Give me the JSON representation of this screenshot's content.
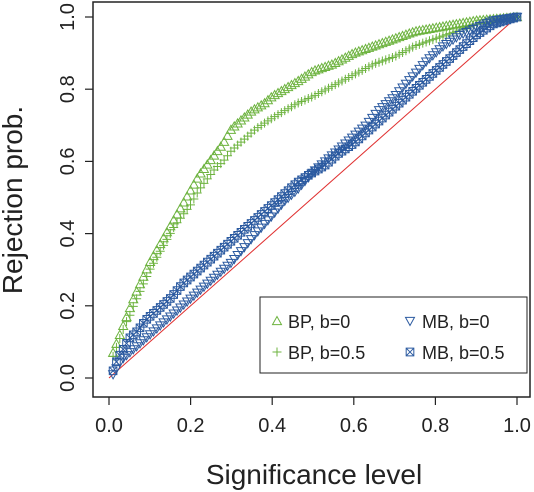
{
  "chart_data": {
    "type": "scatter",
    "xlabel": "Significance level",
    "ylabel": "Rejection prob.",
    "xlim": [
      0,
      1
    ],
    "ylim": [
      0,
      1
    ],
    "x_ticks": [
      "0.0",
      "0.2",
      "0.4",
      "0.6",
      "0.8",
      "1.0"
    ],
    "y_ticks": [
      "0.0",
      "0.2",
      "0.4",
      "0.6",
      "0.8",
      "1.0"
    ],
    "grid": false,
    "legend_position": "bottom-right",
    "reference_line": {
      "from": [
        0,
        0
      ],
      "to": [
        1,
        1
      ],
      "color": "#e03030"
    },
    "series": [
      {
        "name": "BP, b=0",
        "marker": "triangle-up",
        "color": "#6db33f",
        "points": [
          [
            0.01,
            0.07
          ],
          [
            0.02,
            0.1
          ],
          [
            0.03,
            0.13
          ],
          [
            0.04,
            0.16
          ],
          [
            0.05,
            0.19
          ],
          [
            0.06,
            0.22
          ],
          [
            0.08,
            0.27
          ],
          [
            0.1,
            0.32
          ],
          [
            0.12,
            0.36
          ],
          [
            0.14,
            0.4
          ],
          [
            0.16,
            0.44
          ],
          [
            0.18,
            0.48
          ],
          [
            0.2,
            0.52
          ],
          [
            0.22,
            0.56
          ],
          [
            0.24,
            0.59
          ],
          [
            0.26,
            0.62
          ],
          [
            0.28,
            0.65
          ],
          [
            0.3,
            0.69
          ],
          [
            0.32,
            0.71
          ],
          [
            0.35,
            0.74
          ],
          [
            0.38,
            0.76
          ],
          [
            0.4,
            0.78
          ],
          [
            0.43,
            0.8
          ],
          [
            0.46,
            0.82
          ],
          [
            0.5,
            0.85
          ],
          [
            0.55,
            0.87
          ],
          [
            0.6,
            0.9
          ],
          [
            0.65,
            0.92
          ],
          [
            0.7,
            0.94
          ],
          [
            0.75,
            0.96
          ],
          [
            0.8,
            0.97
          ],
          [
            0.85,
            0.98
          ],
          [
            0.9,
            0.99
          ],
          [
            0.95,
            0.995
          ],
          [
            1.0,
            1.0
          ]
        ]
      },
      {
        "name": "BP, b=0.5",
        "marker": "plus",
        "color": "#6db33f",
        "points": [
          [
            0.01,
            0.06
          ],
          [
            0.02,
            0.09
          ],
          [
            0.03,
            0.12
          ],
          [
            0.04,
            0.15
          ],
          [
            0.05,
            0.17
          ],
          [
            0.06,
            0.2
          ],
          [
            0.08,
            0.25
          ],
          [
            0.1,
            0.3
          ],
          [
            0.12,
            0.34
          ],
          [
            0.14,
            0.38
          ],
          [
            0.16,
            0.42
          ],
          [
            0.18,
            0.45
          ],
          [
            0.2,
            0.48
          ],
          [
            0.22,
            0.52
          ],
          [
            0.24,
            0.55
          ],
          [
            0.26,
            0.58
          ],
          [
            0.28,
            0.6
          ],
          [
            0.3,
            0.63
          ],
          [
            0.33,
            0.66
          ],
          [
            0.36,
            0.69
          ],
          [
            0.4,
            0.72
          ],
          [
            0.43,
            0.74
          ],
          [
            0.46,
            0.76
          ],
          [
            0.5,
            0.78
          ],
          [
            0.55,
            0.81
          ],
          [
            0.6,
            0.84
          ],
          [
            0.65,
            0.87
          ],
          [
            0.7,
            0.89
          ],
          [
            0.75,
            0.92
          ],
          [
            0.8,
            0.94
          ],
          [
            0.85,
            0.96
          ],
          [
            0.9,
            0.98
          ],
          [
            0.95,
            0.99
          ],
          [
            1.0,
            1.0
          ]
        ]
      },
      {
        "name": "MB, b=0",
        "marker": "triangle-down",
        "color": "#2b5aa0",
        "points": [
          [
            0.01,
            0.01
          ],
          [
            0.02,
            0.03
          ],
          [
            0.03,
            0.05
          ],
          [
            0.04,
            0.06
          ],
          [
            0.05,
            0.07
          ],
          [
            0.07,
            0.09
          ],
          [
            0.09,
            0.11
          ],
          [
            0.11,
            0.13
          ],
          [
            0.13,
            0.15
          ],
          [
            0.15,
            0.17
          ],
          [
            0.18,
            0.2
          ],
          [
            0.21,
            0.23
          ],
          [
            0.24,
            0.26
          ],
          [
            0.27,
            0.29
          ],
          [
            0.3,
            0.32
          ],
          [
            0.33,
            0.36
          ],
          [
            0.36,
            0.4
          ],
          [
            0.4,
            0.45
          ],
          [
            0.43,
            0.49
          ],
          [
            0.46,
            0.52
          ],
          [
            0.5,
            0.57
          ],
          [
            0.53,
            0.6
          ],
          [
            0.56,
            0.63
          ],
          [
            0.6,
            0.67
          ],
          [
            0.63,
            0.7
          ],
          [
            0.66,
            0.74
          ],
          [
            0.7,
            0.78
          ],
          [
            0.74,
            0.83
          ],
          [
            0.78,
            0.88
          ],
          [
            0.82,
            0.92
          ],
          [
            0.86,
            0.95
          ],
          [
            0.9,
            0.97
          ],
          [
            0.94,
            0.99
          ],
          [
            1.0,
            1.0
          ]
        ]
      },
      {
        "name": "MB, b=0.5",
        "marker": "box-x",
        "color": "#2b5aa0",
        "points": [
          [
            0.01,
            0.02
          ],
          [
            0.02,
            0.05
          ],
          [
            0.03,
            0.07
          ],
          [
            0.04,
            0.09
          ],
          [
            0.05,
            0.11
          ],
          [
            0.07,
            0.13
          ],
          [
            0.09,
            0.16
          ],
          [
            0.11,
            0.18
          ],
          [
            0.13,
            0.2
          ],
          [
            0.15,
            0.22
          ],
          [
            0.18,
            0.26
          ],
          [
            0.21,
            0.29
          ],
          [
            0.24,
            0.32
          ],
          [
            0.27,
            0.35
          ],
          [
            0.3,
            0.38
          ],
          [
            0.33,
            0.41
          ],
          [
            0.36,
            0.44
          ],
          [
            0.4,
            0.48
          ],
          [
            0.43,
            0.51
          ],
          [
            0.46,
            0.54
          ],
          [
            0.5,
            0.57
          ],
          [
            0.53,
            0.59
          ],
          [
            0.56,
            0.62
          ],
          [
            0.6,
            0.65
          ],
          [
            0.63,
            0.68
          ],
          [
            0.66,
            0.71
          ],
          [
            0.7,
            0.75
          ],
          [
            0.74,
            0.79
          ],
          [
            0.78,
            0.83
          ],
          [
            0.82,
            0.87
          ],
          [
            0.86,
            0.91
          ],
          [
            0.9,
            0.95
          ],
          [
            0.94,
            0.98
          ],
          [
            1.0,
            1.0
          ]
        ]
      }
    ]
  }
}
